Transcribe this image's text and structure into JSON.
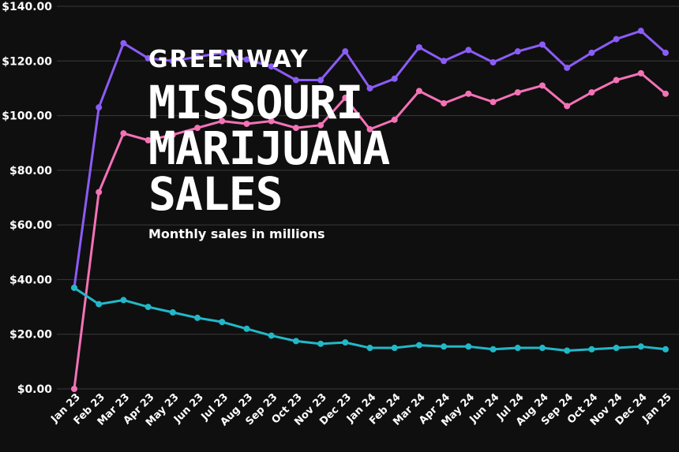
{
  "overlay": {
    "brand": "GREENWAY",
    "headline_lines": [
      "MISSOURI",
      "MARIJUANA",
      "SALES"
    ],
    "subtitle": "Monthly sales in millions"
  },
  "chart_data": {
    "type": "line",
    "categories": [
      "Jan 23",
      "Feb 23",
      "Mar 23",
      "Apr 23",
      "May 23",
      "Jun 23",
      "Jul 23",
      "Aug 23",
      "Sep 23",
      "Oct 23",
      "Nov 23",
      "Dec 23",
      "Jan 24",
      "Feb 24",
      "Mar 24",
      "Apr 24",
      "May 24",
      "Jun 24",
      "Jul 24",
      "Aug 24",
      "Sep 24",
      "Oct 24",
      "Nov 24",
      "Dec 24",
      "Jan 25"
    ],
    "ylim": [
      0,
      140
    ],
    "yticks": [
      "$0.00",
      "$20.00",
      "$40.00",
      "$60.00",
      "$80.00",
      "$100.00",
      "$120.00",
      "$140.00"
    ],
    "grid": true,
    "series": [
      {
        "color": "#8b5cf6",
        "values": [
          37,
          103,
          126.5,
          121,
          120,
          121.5,
          123,
          120.5,
          118,
          113,
          113,
          123.5,
          110,
          113.5,
          125,
          120,
          124,
          119.5,
          123.5,
          126,
          117.5,
          123,
          128,
          131,
          123
        ]
      },
      {
        "color": "#f472b6",
        "values": [
          0,
          72,
          93.5,
          91,
          93,
          95.5,
          98,
          97,
          98,
          95.5,
          96.5,
          106.5,
          95,
          98.5,
          109,
          104.5,
          108,
          105,
          108.5,
          111,
          103.5,
          108.5,
          113,
          115.5,
          108
        ]
      },
      {
        "color": "#22b8c8",
        "values": [
          37,
          31,
          32.5,
          30,
          28,
          26,
          24.5,
          22,
          19.5,
          17.5,
          16.5,
          17,
          15,
          15,
          16,
          15.5,
          15.5,
          14.5,
          15,
          15,
          14,
          14.5,
          15,
          15.5,
          14.5
        ]
      }
    ]
  }
}
